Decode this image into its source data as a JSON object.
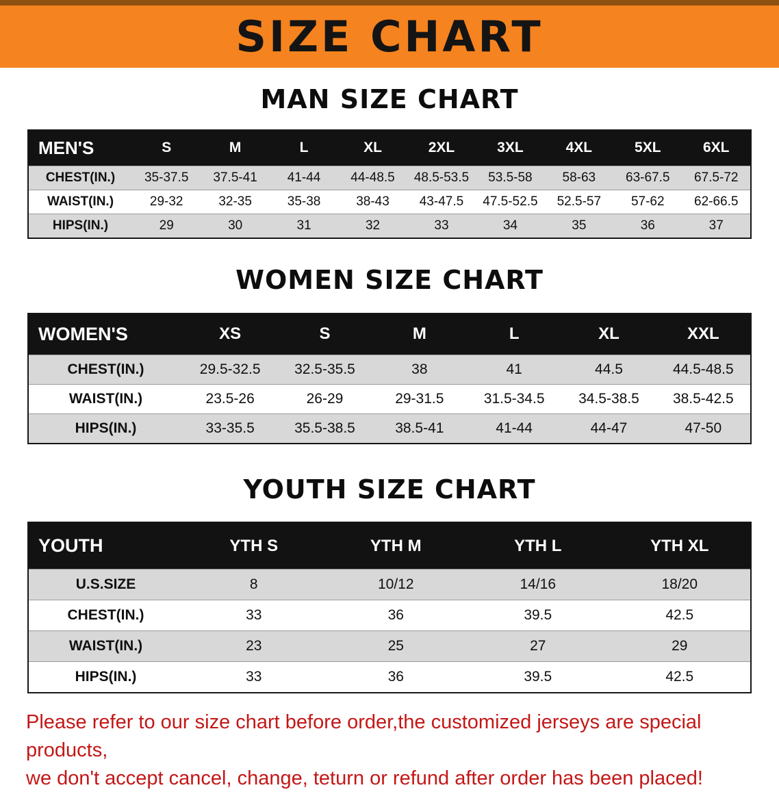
{
  "banner": {
    "title": "SIZE CHART",
    "bg_color": "#F5831F",
    "text_color": "#141414"
  },
  "sections": [
    {
      "heading": "MAN SIZE CHART",
      "table": {
        "header": [
          "MEN'S",
          "S",
          "M",
          "L",
          "XL",
          "2XL",
          "3XL",
          "4XL",
          "5XL",
          "6XL"
        ],
        "rows": [
          [
            "CHEST(IN.)",
            "35-37.5",
            "37.5-41",
            "41-44",
            "44-48.5",
            "48.5-53.5",
            "53.5-58",
            "58-63",
            "63-67.5",
            "67.5-72"
          ],
          [
            "WAIST(IN.)",
            "29-32",
            "32-35",
            "35-38",
            "38-43",
            "43-47.5",
            "47.5-52.5",
            "52.5-57",
            "57-62",
            "62-66.5"
          ],
          [
            "HIPS(IN.)",
            "29",
            "30",
            "31",
            "32",
            "33",
            "34",
            "35",
            "36",
            "37"
          ]
        ]
      }
    },
    {
      "heading": "WOMEN SIZE CHART",
      "table": {
        "header": [
          "WOMEN'S",
          "XS",
          "S",
          "M",
          "L",
          "XL",
          "XXL"
        ],
        "rows": [
          [
            "CHEST(IN.)",
            "29.5-32.5",
            "32.5-35.5",
            "38",
            "41",
            "44.5",
            "44.5-48.5"
          ],
          [
            "WAIST(IN.)",
            "23.5-26",
            "26-29",
            "29-31.5",
            "31.5-34.5",
            "34.5-38.5",
            "38.5-42.5"
          ],
          [
            "HIPS(IN.)",
            "33-35.5",
            "35.5-38.5",
            "38.5-41",
            "41-44",
            "44-47",
            "47-50"
          ]
        ]
      }
    },
    {
      "heading": "YOUTH SIZE CHART",
      "table": {
        "header": [
          "YOUTH",
          "YTH S",
          "YTH M",
          "YTH L",
          "YTH XL"
        ],
        "rows": [
          [
            "U.S.SIZE",
            "8",
            "10/12",
            "14/16",
            "18/20"
          ],
          [
            "CHEST(IN.)",
            "33",
            "36",
            "39.5",
            "42.5"
          ],
          [
            "WAIST(IN.)",
            "23",
            "25",
            "27",
            "29"
          ],
          [
            "HIPS(IN.)",
            "33",
            "36",
            "39.5",
            "42.5"
          ]
        ]
      }
    }
  ],
  "disclaimer": {
    "line1": "Please refer to our size chart before order,the customized jerseys are special products,",
    "line2": "we don't accept cancel, change, teturn or refund after order has been placed!",
    "text_color": "#C41717"
  }
}
